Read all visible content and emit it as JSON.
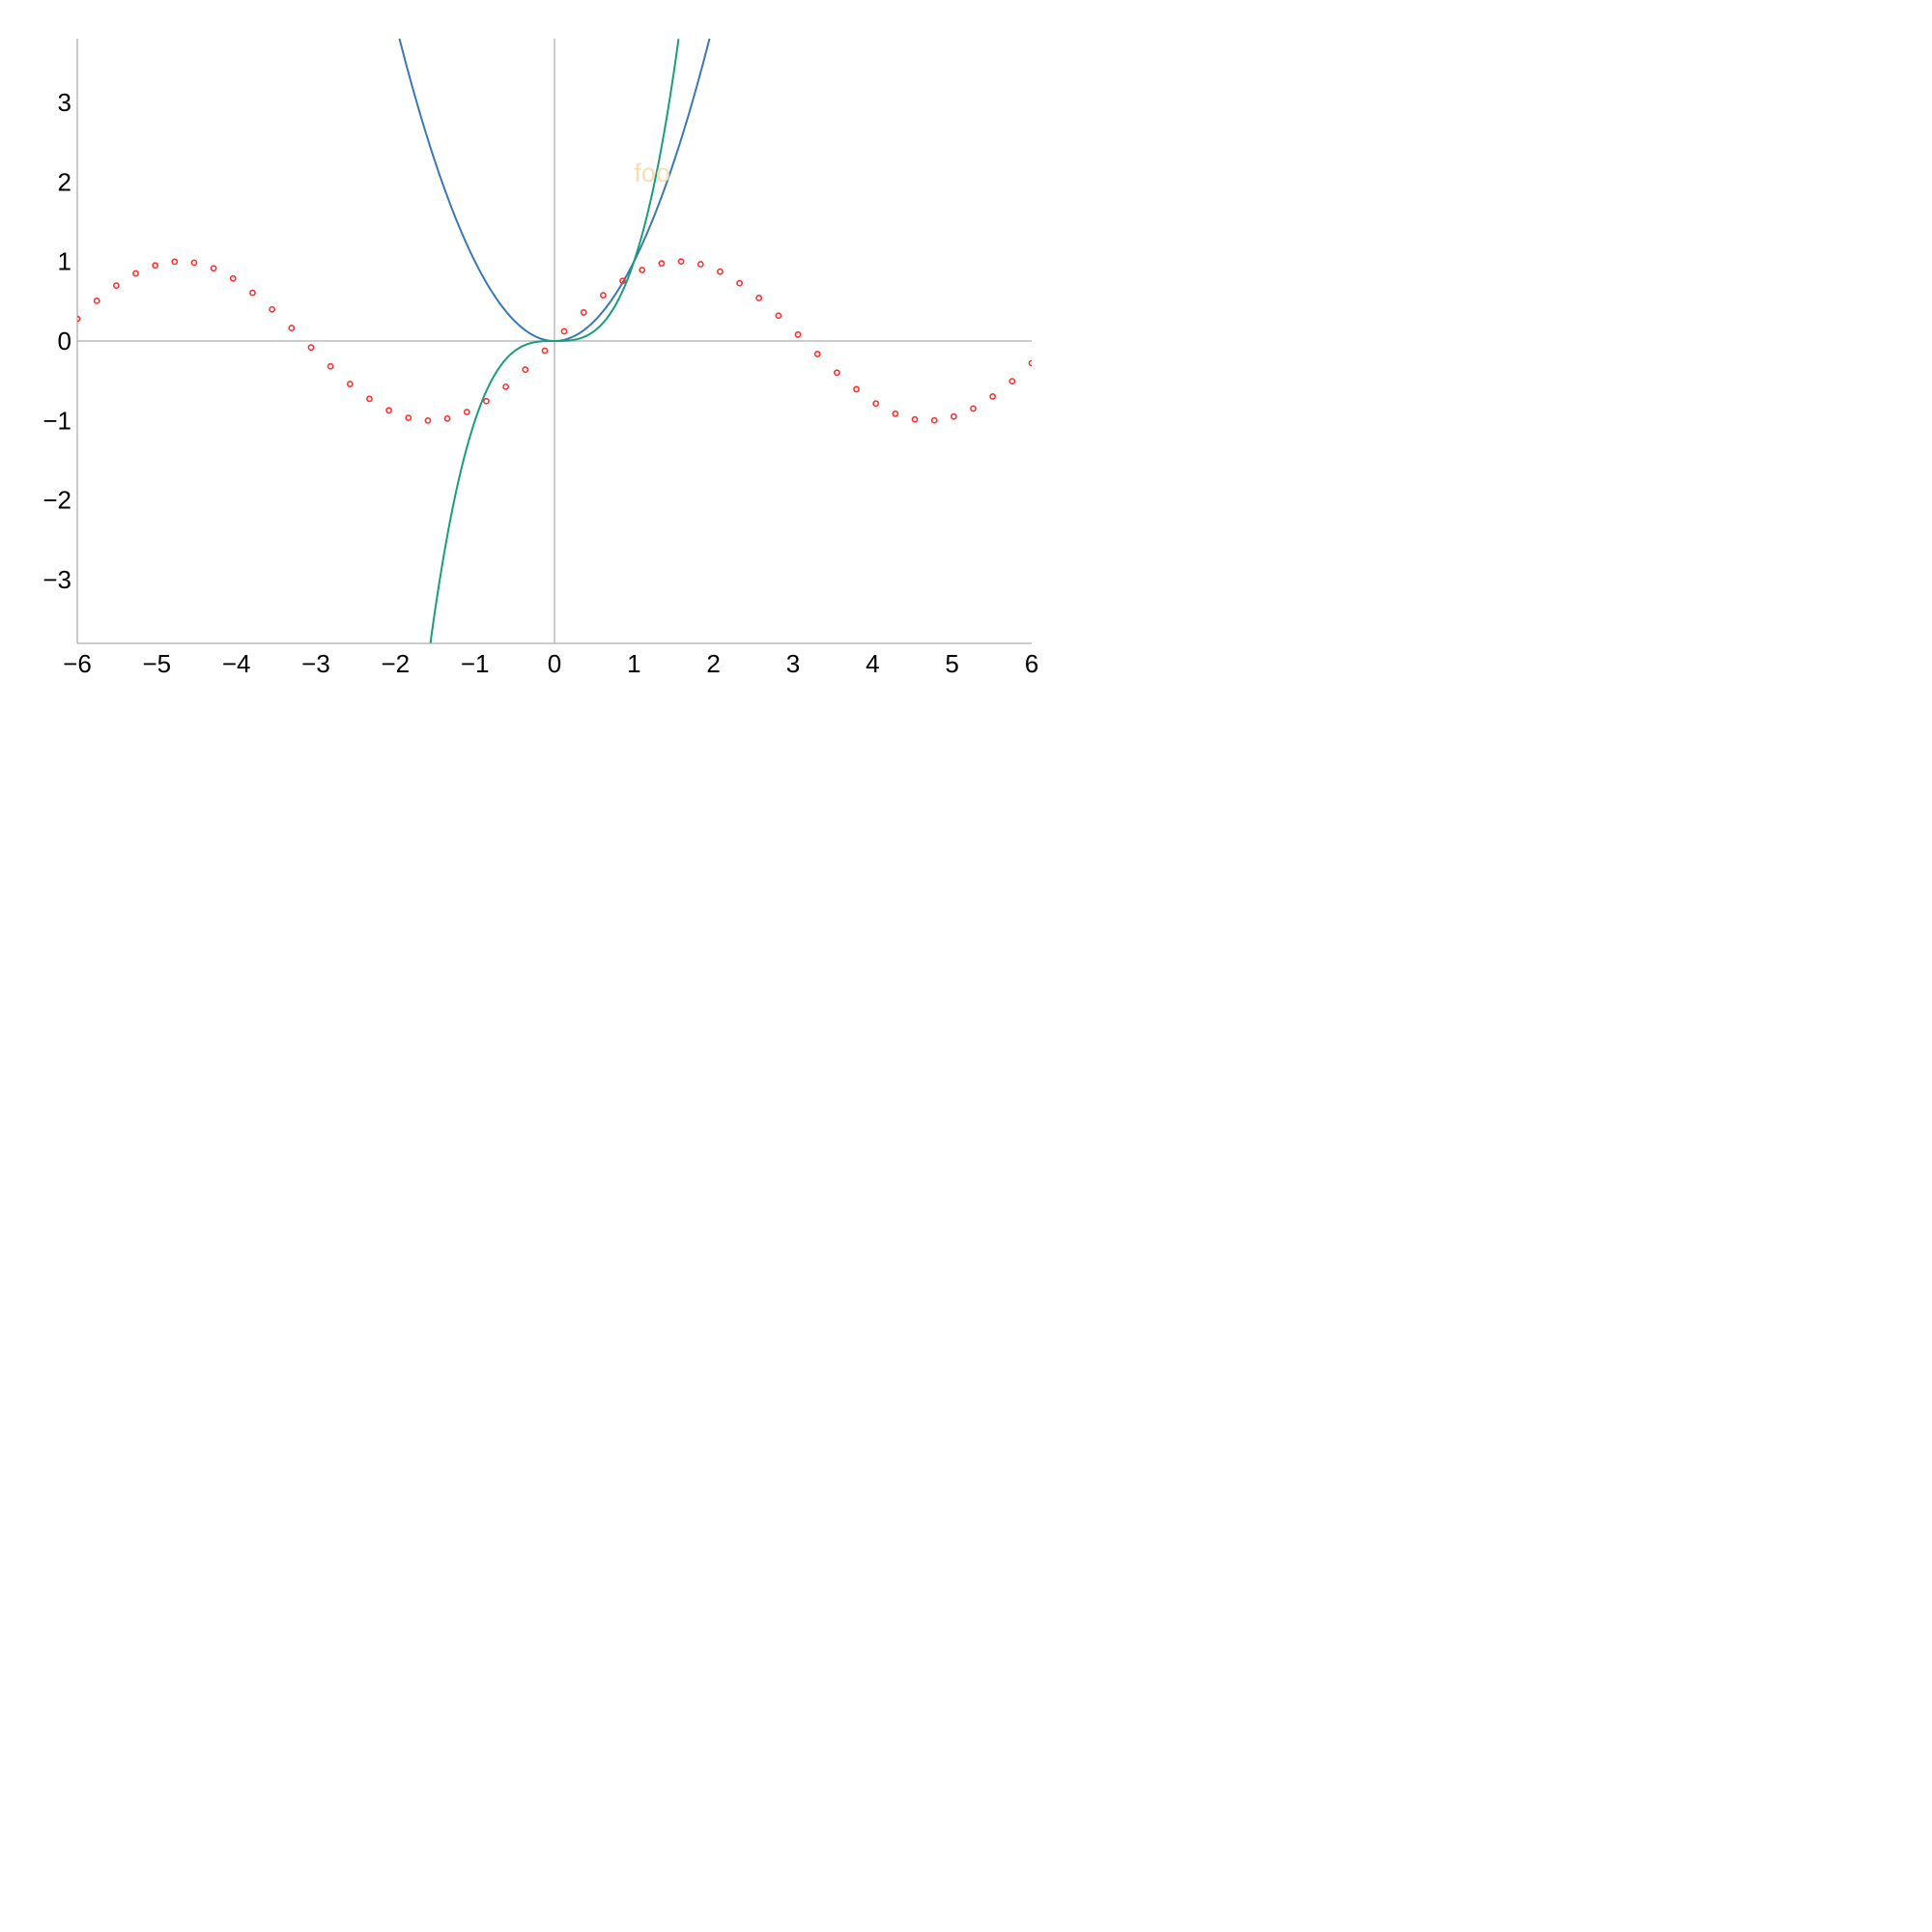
{
  "chart_data": {
    "type": "line",
    "title": "",
    "xlabel": "",
    "ylabel": "",
    "xlim": [
      -6,
      6
    ],
    "ylim": [
      -3.8,
      3.8
    ],
    "grid": false,
    "axes_through_origin": true,
    "x_ticks": [
      -6,
      -5,
      -4,
      -3,
      -2,
      -1,
      0,
      1,
      2,
      3,
      4,
      5,
      6
    ],
    "y_ticks": [
      -3,
      -2,
      -1,
      0,
      1,
      2,
      3
    ],
    "x_tick_labels": [
      "−6",
      "−5",
      "−4",
      "−3",
      "−2",
      "−1",
      "0",
      "1",
      "2",
      "3",
      "4",
      "5",
      "6"
    ],
    "y_tick_labels": [
      "−3",
      "−2",
      "−1",
      "0",
      "1",
      "2",
      "3"
    ],
    "series": [
      {
        "function": "x^2",
        "style": "line",
        "color": "#3a78b5",
        "x": [
          -1.95,
          -1.8,
          -1.6,
          -1.4,
          -1.2,
          -1.0,
          -0.8,
          -0.6,
          -0.4,
          -0.2,
          0,
          0.2,
          0.4,
          0.6,
          0.8,
          1.0,
          1.2,
          1.4,
          1.6,
          1.8,
          1.95
        ],
        "y": [
          3.8025,
          3.24,
          2.56,
          1.96,
          1.44,
          1.0,
          0.64,
          0.36,
          0.16,
          0.04,
          0,
          0.04,
          0.16,
          0.36,
          0.64,
          1.0,
          1.44,
          1.96,
          2.56,
          3.24,
          3.8025
        ]
      },
      {
        "function": "x^3",
        "style": "line",
        "color": "#1a9e77",
        "x": [
          -1.56,
          -1.4,
          -1.2,
          -1.0,
          -0.8,
          -0.6,
          -0.4,
          -0.2,
          0,
          0.2,
          0.4,
          0.6,
          0.8,
          1.0,
          1.2,
          1.4,
          1.56
        ],
        "y": [
          -3.796,
          -2.744,
          -1.728,
          -1.0,
          -0.512,
          -0.216,
          -0.064,
          -0.008,
          0,
          0.008,
          0.064,
          0.216,
          0.512,
          1.0,
          1.728,
          2.744,
          3.796
        ]
      },
      {
        "function": "sin(x)",
        "style": "scatter",
        "color": "#ff3030",
        "x": [
          -6.0,
          -5.755,
          -5.51,
          -5.265,
          -5.02,
          -4.776,
          -4.531,
          -4.286,
          -4.041,
          -3.796,
          -3.551,
          -3.306,
          -3.061,
          -2.816,
          -2.571,
          -2.327,
          -2.082,
          -1.837,
          -1.592,
          -1.347,
          -1.102,
          -0.857,
          -0.612,
          -0.367,
          -0.122,
          0.122,
          0.367,
          0.612,
          0.857,
          1.102,
          1.347,
          1.592,
          1.837,
          2.082,
          2.327,
          2.571,
          2.816,
          3.061,
          3.306,
          3.551,
          3.796,
          4.041,
          4.286,
          4.531,
          4.776,
          5.02,
          5.265,
          5.51,
          5.755,
          6.0
        ],
        "y": [
          0.279,
          0.505,
          0.697,
          0.849,
          0.949,
          0.997,
          0.985,
          0.914,
          0.786,
          0.606,
          0.398,
          0.163,
          -0.081,
          -0.319,
          -0.541,
          -0.727,
          -0.872,
          -0.965,
          -1.0,
          -0.975,
          -0.892,
          -0.756,
          -0.575,
          -0.359,
          -0.122,
          0.122,
          0.359,
          0.575,
          0.756,
          0.892,
          0.975,
          1.0,
          0.965,
          0.872,
          0.727,
          0.541,
          0.319,
          0.081,
          -0.163,
          -0.398,
          -0.606,
          -0.786,
          -0.914,
          -0.985,
          -0.997,
          -0.949,
          -0.849,
          -0.697,
          -0.505,
          -0.279
        ]
      }
    ],
    "annotations": [
      {
        "text": "foo",
        "x": 1.0,
        "y": 2.1,
        "color": "#f5deb3"
      }
    ]
  }
}
